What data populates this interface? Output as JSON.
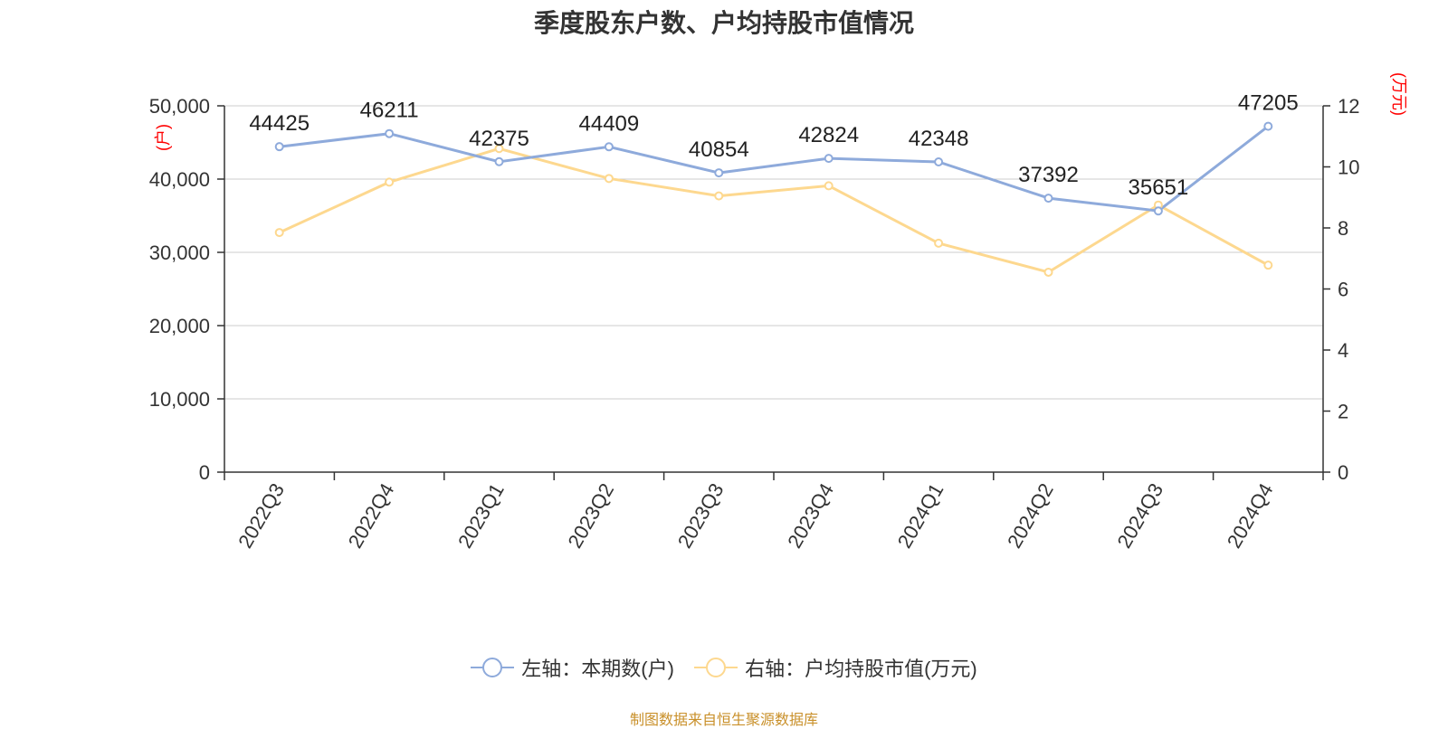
{
  "title": "季度股东户数、户均持股市值情况",
  "source": "制图数据来自恒生聚源数据库",
  "colors": {
    "series_left": "#8eaadb",
    "series_right": "#fdd88f",
    "axis_unit": "#ff0000",
    "source_text": "#c9902a",
    "grid": "#cccccc",
    "axis": "#333333"
  },
  "chart_data": {
    "type": "line",
    "categories": [
      "2022Q3",
      "2022Q4",
      "2023Q1",
      "2023Q2",
      "2023Q3",
      "2023Q4",
      "2024Q1",
      "2024Q2",
      "2024Q3",
      "2024Q4"
    ],
    "series": [
      {
        "name": "左轴：本期数(户)",
        "axis": "left",
        "values": [
          44425,
          46211,
          42375,
          44409,
          40854,
          42824,
          42348,
          37392,
          35651,
          47205
        ],
        "show_labels": true
      },
      {
        "name": "右轴：户均持股市值(万元)",
        "axis": "right",
        "values": [
          7.85,
          9.5,
          10.6,
          9.62,
          9.05,
          9.38,
          7.5,
          6.55,
          8.75,
          6.78
        ],
        "show_labels": false
      }
    ],
    "y_left": {
      "unit_label": "(户)",
      "range": [
        0,
        50000
      ],
      "ticks": [
        "0",
        "10,000",
        "20,000",
        "30,000",
        "40,000",
        "50,000"
      ]
    },
    "y_right": {
      "unit_label": "(万元)",
      "range": [
        0,
        12
      ],
      "ticks": [
        "0",
        "2",
        "4",
        "6",
        "8",
        "10",
        "12"
      ]
    },
    "grid": true,
    "legend_position": "bottom"
  }
}
